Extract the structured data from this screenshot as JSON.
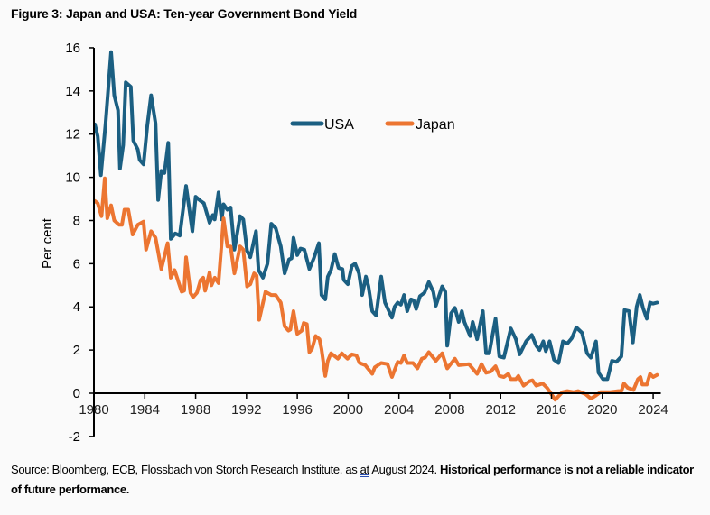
{
  "title": "Figure 3: Japan and USA: Ten-year Government Bond Yield",
  "source": {
    "part1": "Source: Bloomberg, ECB, Flossbach von Storch Research Institute, as ",
    "underlined": "at",
    "part2": " August 2024. ",
    "bold": "Historical performance is not a reliable indicator of future performance."
  },
  "chart_data": {
    "type": "line",
    "title": "Figure 3: Japan and USA: Ten-year Government Bond Yield",
    "xlabel": "",
    "ylabel": "Per cent",
    "xlim": [
      1980,
      2024.6
    ],
    "ylim": [
      -2,
      16
    ],
    "xticks": [
      "1980",
      "1984",
      "1988",
      "1992",
      "1996",
      "2000",
      "2004",
      "2008",
      "2012",
      "2016",
      "2020",
      "2024"
    ],
    "yticks": [
      "-2",
      "0",
      "2",
      "4",
      "6",
      "8",
      "10",
      "12",
      "14",
      "16"
    ],
    "grid": false,
    "legend": "top-center",
    "series": [
      {
        "name": "USA",
        "color": "#1b5f82",
        "x": [
          1980.07,
          1980.3,
          1980.55,
          1980.9,
          1981.35,
          1981.6,
          1981.9,
          1982.05,
          1982.3,
          1982.5,
          1982.9,
          1983.1,
          1983.45,
          1983.6,
          1983.9,
          1984.2,
          1984.5,
          1984.85,
          1985.05,
          1985.3,
          1985.55,
          1985.85,
          1986.05,
          1986.4,
          1986.75,
          1987.25,
          1987.75,
          1988.0,
          1988.4,
          1988.65,
          1989.1,
          1989.35,
          1989.5,
          1989.8,
          1990.05,
          1990.2,
          1990.5,
          1990.75,
          1991.05,
          1991.5,
          1991.75,
          1992.05,
          1992.3,
          1992.75,
          1992.95,
          1993.3,
          1993.65,
          1993.95,
          1994.3,
          1994.7,
          1995.0,
          1995.35,
          1995.55,
          1995.7,
          1996.0,
          1996.25,
          1996.55,
          1996.95,
          1997.3,
          1997.7,
          1997.9,
          1998.2,
          1998.4,
          1998.65,
          1998.95,
          1999.25,
          1999.55,
          1999.65,
          1999.98,
          2000.3,
          2000.55,
          2000.85,
          2001.1,
          2001.4,
          2001.6,
          2001.9,
          2002.2,
          2002.6,
          2002.9,
          2003.45,
          2003.65,
          2003.9,
          2004.15,
          2004.4,
          2004.65,
          2004.95,
          2005.15,
          2005.35,
          2005.65,
          2006.0,
          2006.35,
          2006.7,
          2006.9,
          2007.4,
          2007.65,
          2007.8,
          2008.1,
          2008.4,
          2008.7,
          2008.95,
          2009.15,
          2009.6,
          2009.8,
          2010.15,
          2010.6,
          2010.85,
          2011.1,
          2011.6,
          2011.9,
          2012.25,
          2012.8,
          2013.2,
          2013.5,
          2014.0,
          2014.45,
          2014.8,
          2015.05,
          2015.35,
          2015.55,
          2015.85,
          2016.2,
          2016.55,
          2016.9,
          2017.25,
          2017.6,
          2017.95,
          2018.4,
          2018.8,
          2019.1,
          2019.5,
          2019.7,
          2020.05,
          2020.4,
          2020.75,
          2021.1,
          2021.5,
          2021.75,
          2022.1,
          2022.4,
          2022.7,
          2022.95,
          2023.2,
          2023.5,
          2023.75,
          2024.0,
          2024.3
        ],
        "y": [
          12.45,
          11.9,
          10.1,
          12.4,
          15.8,
          13.8,
          13.1,
          10.4,
          11.5,
          14.4,
          14.2,
          11.7,
          11.3,
          10.8,
          10.6,
          12.4,
          13.8,
          12.5,
          8.95,
          10.3,
          10.2,
          11.6,
          7.15,
          7.4,
          7.3,
          9.6,
          7.5,
          9.1,
          8.9,
          8.8,
          7.9,
          8.25,
          8.05,
          9.3,
          8.05,
          8.75,
          8.5,
          8.6,
          6.65,
          8.2,
          8.05,
          6.6,
          6.3,
          7.5,
          5.7,
          5.35,
          6.0,
          7.85,
          7.65,
          6.8,
          5.55,
          6.2,
          6.25,
          7.2,
          6.4,
          6.7,
          6.65,
          5.75,
          6.25,
          6.95,
          4.55,
          4.35,
          5.4,
          5.7,
          6.45,
          5.8,
          5.75,
          5.25,
          5.05,
          5.9,
          6.0,
          5.55,
          4.55,
          5.4,
          4.95,
          3.8,
          3.6,
          5.4,
          4.2,
          3.5,
          4.0,
          4.2,
          4.1,
          4.55,
          3.8,
          4.35,
          4.3,
          3.9,
          4.5,
          4.65,
          5.15,
          4.7,
          4.05,
          4.95,
          4.7,
          2.2,
          3.7,
          3.95,
          3.3,
          3.8,
          3.3,
          2.65,
          3.3,
          2.5,
          3.8,
          1.85,
          1.85,
          3.45,
          1.7,
          1.65,
          3.0,
          2.5,
          1.8,
          2.4,
          2.7,
          2.2,
          2.0,
          2.4,
          1.95,
          2.4,
          1.55,
          1.4,
          2.4,
          2.3,
          2.55,
          3.05,
          2.8,
          1.85,
          1.65,
          2.4,
          0.95,
          0.65,
          0.65,
          1.5,
          1.45,
          1.7,
          3.85,
          3.8,
          2.35,
          4.0,
          4.55,
          3.95,
          3.45,
          4.2,
          4.15,
          4.2
        ]
      },
      {
        "name": "Japan",
        "color": "#ec7531",
        "x": [
          1980.07,
          1980.3,
          1980.6,
          1980.85,
          1981.05,
          1981.35,
          1981.6,
          1982.0,
          1982.2,
          1982.4,
          1982.7,
          1983.05,
          1983.45,
          1983.9,
          1984.1,
          1984.5,
          1984.85,
          1985.3,
          1985.8,
          1986.05,
          1986.35,
          1986.9,
          1987.1,
          1987.25,
          1987.6,
          1987.8,
          1988.1,
          1988.4,
          1988.6,
          1988.75,
          1989.1,
          1989.25,
          1989.5,
          1989.8,
          1990.2,
          1990.5,
          1990.75,
          1991.05,
          1991.5,
          1991.75,
          1992.05,
          1992.3,
          1992.6,
          1992.8,
          1993.0,
          1993.5,
          1993.95,
          1994.3,
          1994.7,
          1995.0,
          1995.3,
          1995.45,
          1995.7,
          1996.0,
          1996.35,
          1996.5,
          1996.75,
          1996.95,
          1997.15,
          1997.45,
          1997.75,
          1997.9,
          1998.2,
          1998.4,
          1998.65,
          1999.2,
          1999.5,
          1999.95,
          2000.3,
          2000.65,
          2000.9,
          2001.35,
          2001.55,
          2001.9,
          2002.1,
          2002.6,
          2003.1,
          2003.45,
          2003.9,
          2004.15,
          2004.4,
          2004.65,
          2005.1,
          2005.45,
          2005.8,
          2006.05,
          2006.35,
          2006.9,
          2007.4,
          2007.8,
          2008.4,
          2008.7,
          2009.5,
          2010.15,
          2010.5,
          2010.85,
          2011.2,
          2011.6,
          2011.9,
          2012.25,
          2012.6,
          2012.8,
          2013.2,
          2013.4,
          2013.8,
          2014.25,
          2014.5,
          2014.8,
          2015.3,
          2015.65,
          2016.3,
          2016.85,
          2017.25,
          2017.75,
          2018.1,
          2018.7,
          2019.1,
          2019.5,
          2019.85,
          2020.55,
          2021.25,
          2021.5,
          2021.7,
          2022.0,
          2022.45,
          2022.8,
          2023.0,
          2023.15,
          2023.5,
          2023.75,
          2024.0,
          2024.3
        ],
        "y": [
          8.9,
          8.8,
          8.2,
          9.95,
          8.1,
          8.7,
          8.0,
          7.8,
          7.8,
          8.5,
          8.5,
          7.35,
          7.8,
          7.95,
          6.65,
          7.5,
          7.2,
          5.75,
          6.95,
          5.35,
          5.7,
          4.7,
          4.75,
          6.3,
          4.65,
          4.45,
          4.65,
          5.25,
          5.35,
          4.75,
          5.6,
          5.0,
          5.35,
          5.1,
          8.1,
          6.8,
          6.8,
          5.55,
          6.8,
          6.65,
          4.95,
          5.05,
          5.55,
          5.45,
          3.4,
          4.7,
          4.55,
          4.55,
          4.2,
          3.1,
          2.9,
          2.95,
          3.8,
          2.75,
          2.9,
          3.25,
          3.2,
          1.9,
          2.05,
          2.65,
          2.5,
          2.05,
          0.8,
          1.5,
          1.85,
          1.6,
          1.85,
          1.6,
          1.8,
          1.75,
          1.4,
          1.3,
          1.15,
          0.9,
          1.2,
          1.4,
          1.35,
          0.75,
          1.45,
          1.4,
          1.75,
          1.4,
          1.4,
          1.15,
          1.6,
          1.65,
          1.9,
          1.5,
          1.85,
          1.15,
          1.6,
          1.3,
          1.35,
          0.9,
          1.35,
          0.95,
          1.0,
          1.25,
          0.8,
          0.75,
          0.9,
          0.65,
          0.65,
          0.8,
          0.35,
          0.55,
          0.6,
          0.35,
          0.45,
          0.25,
          -0.3,
          0.05,
          0.1,
          0.05,
          0.1,
          -0.05,
          -0.25,
          -0.1,
          0.05,
          0.05,
          0.1,
          0.1,
          0.45,
          0.25,
          0.15,
          0.65,
          0.75,
          0.4,
          0.4,
          0.9,
          0.75,
          0.85
        ]
      }
    ]
  }
}
